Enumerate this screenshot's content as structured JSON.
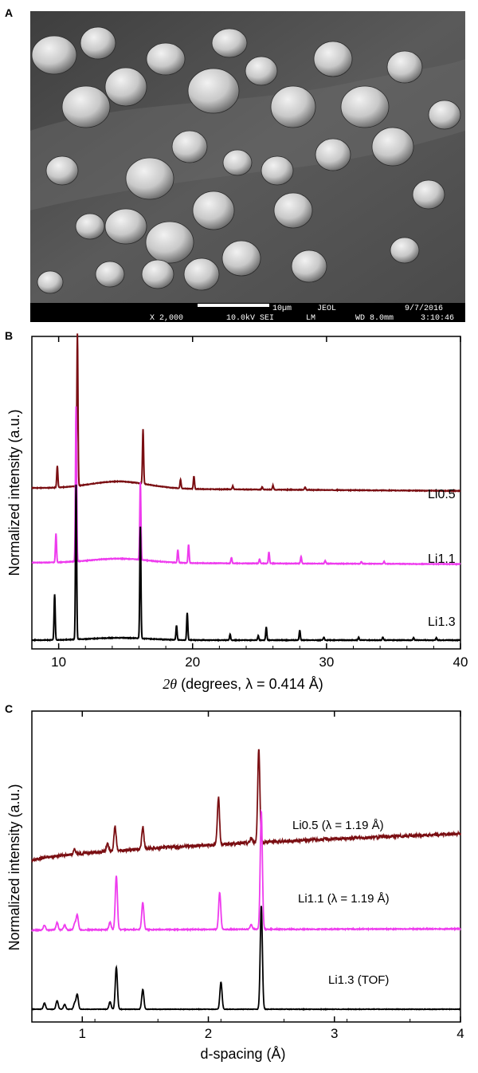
{
  "panels": {
    "a": {
      "letter": "A"
    },
    "b": {
      "letter": "B"
    },
    "c": {
      "letter": "C"
    }
  },
  "sem": {
    "magnification": "X 2,000",
    "voltage": "10.0kV SEI",
    "mode": "LM",
    "scale": "10µm",
    "brand": "JEOL",
    "wd": "WD 8.0mm",
    "date": "9/7/2016",
    "time": "3:10:46"
  },
  "colors": {
    "Li0.5": "#7a0e12",
    "Li1.1": "#ee3bee",
    "Li1.3": "#000000"
  },
  "chart_data": [
    {
      "type": "line",
      "panel": "B",
      "xlabel_prefix": "2θ",
      "xlabel_rest": " (degrees, λ = 0.414 Å)",
      "ylabel": "Normalized intensity (a.u.)",
      "xlim": [
        8,
        40
      ],
      "xticks": [
        10,
        20,
        30,
        40
      ],
      "series": [
        {
          "name": "Li0.5",
          "baseline": 0.53,
          "tail": 0.52,
          "bump": 0.025,
          "peaks": [
            [
              9.9,
              0.075
            ],
            [
              11.4,
              0.53
            ],
            [
              16.3,
              0.19
            ],
            [
              19.1,
              0.03
            ],
            [
              20.1,
              0.045
            ],
            [
              23.0,
              0.012
            ],
            [
              25.2,
              0.01
            ],
            [
              26.0,
              0.015
            ],
            [
              28.4,
              0.01
            ]
          ]
        },
        {
          "name": "Li1.1",
          "baseline": 0.27,
          "tail": 0.265,
          "bump": 0.015,
          "peaks": [
            [
              9.8,
              0.1
            ],
            [
              11.3,
              0.54
            ],
            [
              16.1,
              0.27
            ],
            [
              18.9,
              0.045
            ],
            [
              19.7,
              0.065
            ],
            [
              22.9,
              0.02
            ],
            [
              25.0,
              0.015
            ],
            [
              25.7,
              0.04
            ],
            [
              28.1,
              0.025
            ],
            [
              29.9,
              0.01
            ],
            [
              32.6,
              0.008
            ],
            [
              34.3,
              0.008
            ]
          ]
        },
        {
          "name": "Li1.3",
          "baseline": 0.0,
          "tail": 0.0,
          "bump": 0.008,
          "peaks": [
            [
              9.7,
              0.16
            ],
            [
              11.3,
              0.54
            ],
            [
              16.1,
              0.39
            ],
            [
              18.8,
              0.05
            ],
            [
              19.6,
              0.095
            ],
            [
              22.8,
              0.02
            ],
            [
              24.9,
              0.015
            ],
            [
              25.5,
              0.045
            ],
            [
              28.0,
              0.035
            ],
            [
              29.8,
              0.01
            ],
            [
              32.4,
              0.01
            ],
            [
              34.2,
              0.01
            ],
            [
              36.5,
              0.008
            ],
            [
              38.2,
              0.008
            ]
          ]
        }
      ]
    },
    {
      "type": "line",
      "panel": "C",
      "xlabel": "d-spacing (Å)",
      "ylabel": "Normalized intensity (a.u.)",
      "xlim": [
        0.6,
        4
      ],
      "xticks": [
        1,
        2,
        3,
        4
      ],
      "series": [
        {
          "name": "Li0.5 (λ = 1.19 Å)",
          "color_key": "Li0.5",
          "start": 0.6,
          "end": 0.71,
          "noise": 0.012,
          "peaks": [
            [
              0.94,
              0.02
            ],
            [
              1.2,
              0.03
            ],
            [
              1.26,
              0.1
            ],
            [
              1.48,
              0.09
            ],
            [
              2.08,
              0.19
            ],
            [
              2.34,
              0.02
            ],
            [
              2.4,
              0.38
            ]
          ]
        },
        {
          "name": "Li1.1 (λ = 1.19 Å)",
          "color_key": "Li1.1",
          "start": 0.32,
          "end": 0.325,
          "noise": 0.004,
          "peaks": [
            [
              0.7,
              0.02
            ],
            [
              0.8,
              0.03
            ],
            [
              0.86,
              0.02
            ],
            [
              0.94,
              0.025
            ],
            [
              0.96,
              0.06
            ],
            [
              1.22,
              0.03
            ],
            [
              1.27,
              0.22
            ],
            [
              1.48,
              0.11
            ],
            [
              2.09,
              0.15
            ],
            [
              2.34,
              0.02
            ],
            [
              2.42,
              0.48
            ]
          ]
        },
        {
          "name": "Li1.3 (TOF)",
          "color_key": "Li1.3",
          "start": 0.0,
          "end": 0.0,
          "noise": 0.002,
          "peaks": [
            [
              0.7,
              0.025
            ],
            [
              0.8,
              0.035
            ],
            [
              0.86,
              0.02
            ],
            [
              0.94,
              0.025
            ],
            [
              0.96,
              0.06
            ],
            [
              1.22,
              0.03
            ],
            [
              1.27,
              0.17
            ],
            [
              1.48,
              0.08
            ],
            [
              2.1,
              0.11
            ],
            [
              2.42,
              0.42
            ]
          ]
        }
      ]
    }
  ]
}
